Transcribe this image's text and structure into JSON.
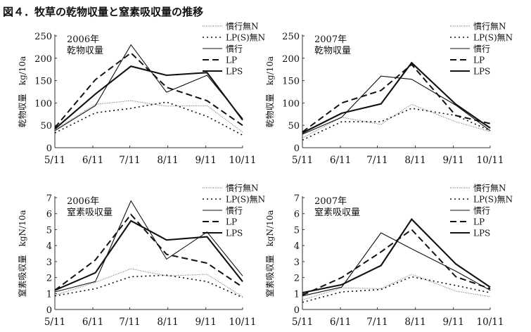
{
  "title": "図４．牧草の乾物収量と窒素吸収量の推移",
  "chart_data": [
    {
      "type": "line",
      "year_label": "2006年",
      "panel_label": "乾物収量",
      "ylabel": "乾物収量　kg/10a",
      "ylim": [
        0,
        250
      ],
      "yticks": [
        "0",
        "50",
        "100",
        "150",
        "200",
        "250"
      ],
      "xtick_labels": [
        "5/11",
        "6/11",
        "7/11",
        "8/11",
        "9/11",
        "10/11"
      ],
      "x_days": [
        0,
        33,
        62,
        91,
        124,
        153
      ],
      "series": [
        {
          "name": "慣行無N",
          "style": "thin-dotted",
          "values": [
            40,
            97,
            105,
            93,
            94,
            35
          ]
        },
        {
          "name": "LP(S)無N",
          "style": "dotted",
          "values": [
            33,
            78,
            88,
            102,
            70,
            28
          ]
        },
        {
          "name": "慣行",
          "style": "thin-solid",
          "values": [
            38,
            94,
            230,
            124,
            162,
            65
          ]
        },
        {
          "name": "LP",
          "style": "dashed",
          "values": [
            45,
            152,
            212,
            135,
            105,
            50
          ]
        },
        {
          "name": "LPS",
          "style": "thick-solid",
          "values": [
            42,
            120,
            182,
            162,
            168,
            62
          ]
        }
      ]
    },
    {
      "type": "line",
      "year_label": "2007年",
      "panel_label": "乾物収量",
      "ylabel": "乾物収量　kg/10a",
      "ylim": [
        0,
        250
      ],
      "yticks": [
        "0",
        "50",
        "100",
        "150",
        "200",
        "250"
      ],
      "xtick_labels": [
        "5/11",
        "6/11",
        "7/11",
        "8/11",
        "9/11",
        "10/11"
      ],
      "x_days": [
        0,
        32,
        64,
        89,
        125,
        153
      ],
      "series": [
        {
          "name": "慣行無N",
          "style": "thin-dotted",
          "values": [
            22,
            68,
            52,
            97,
            58,
            36
          ]
        },
        {
          "name": "LP(S)無N",
          "style": "dotted",
          "values": [
            17,
            58,
            58,
            88,
            72,
            38
          ]
        },
        {
          "name": "慣行",
          "style": "thin-solid",
          "values": [
            30,
            68,
            160,
            153,
            95,
            38
          ]
        },
        {
          "name": "LP",
          "style": "dashed",
          "values": [
            35,
            100,
            128,
            186,
            72,
            54
          ]
        },
        {
          "name": "LPS",
          "style": "thick-solid",
          "values": [
            33,
            77,
            98,
            190,
            97,
            44
          ]
        }
      ]
    },
    {
      "type": "line",
      "year_label": "2006年",
      "panel_label": "窒素吸収量",
      "ylabel": "窒素吸収量　kgN/10a",
      "ylim": [
        0,
        7
      ],
      "yticks": [
        "0",
        "1",
        "2",
        "3",
        "4",
        "5",
        "6",
        "7"
      ],
      "xtick_labels": [
        "5/11",
        "6/11",
        "7/11",
        "8/11",
        "9/11",
        "10/11"
      ],
      "x_days": [
        0,
        33,
        62,
        91,
        124,
        153
      ],
      "series": [
        {
          "name": "慣行無N",
          "style": "thin-dotted",
          "values": [
            0.9,
            1.7,
            2.55,
            2.1,
            2.2,
            0.8
          ]
        },
        {
          "name": "LP(S)無N",
          "style": "dotted",
          "values": [
            0.85,
            1.3,
            2.05,
            2.15,
            1.75,
            0.75
          ]
        },
        {
          "name": "慣行",
          "style": "thin-solid",
          "values": [
            1.1,
            1.75,
            6.8,
            3.15,
            4.85,
            2.1
          ]
        },
        {
          "name": "LP",
          "style": "dashed",
          "values": [
            1.2,
            3.1,
            5.95,
            3.45,
            2.9,
            1.4
          ]
        },
        {
          "name": "LPS",
          "style": "thick-solid",
          "values": [
            1.2,
            2.3,
            5.55,
            4.35,
            4.55,
            1.75
          ]
        }
      ]
    },
    {
      "type": "line",
      "year_label": "2007年",
      "panel_label": "窒素吸収量",
      "ylabel": "窒素吸収量　kgN/10a",
      "ylim": [
        0,
        7
      ],
      "yticks": [
        "0",
        "1",
        "2",
        "3",
        "4",
        "5",
        "6",
        "7"
      ],
      "xtick_labels": [
        "5/11",
        "6/11",
        "7/11",
        "8/11",
        "9/11",
        "10/11"
      ],
      "x_days": [
        0,
        32,
        64,
        89,
        125,
        153
      ],
      "series": [
        {
          "name": "慣行無N",
          "style": "thin-dotted",
          "values": [
            0.6,
            1.35,
            1.3,
            2.2,
            1.15,
            0.8
          ]
        },
        {
          "name": "LP(S)無N",
          "style": "dotted",
          "values": [
            0.45,
            1.1,
            1.25,
            2.05,
            1.5,
            1.05
          ]
        },
        {
          "name": "慣行",
          "style": "thin-solid",
          "values": [
            0.85,
            1.4,
            4.8,
            3.8,
            2.4,
            1.2
          ]
        },
        {
          "name": "LP",
          "style": "dashed",
          "values": [
            0.9,
            2.0,
            3.6,
            5.0,
            2.05,
            1.3
          ]
        },
        {
          "name": "LPS",
          "style": "thick-solid",
          "values": [
            1.05,
            1.55,
            2.75,
            5.65,
            2.85,
            1.4
          ]
        }
      ]
    }
  ]
}
